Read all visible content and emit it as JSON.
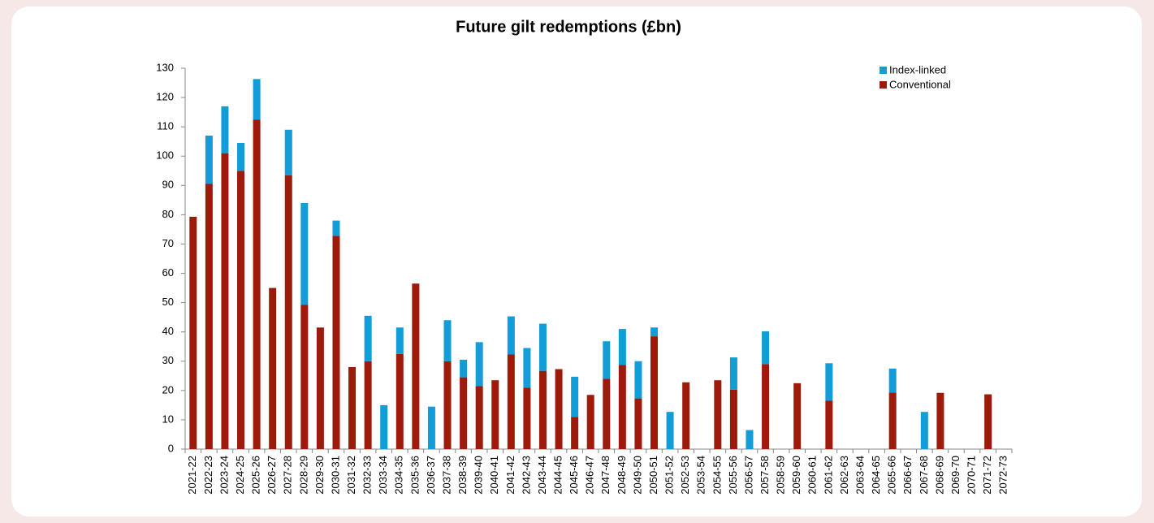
{
  "chart_data": {
    "type": "stacked_bar",
    "title": "Future gilt redemptions (£bn)",
    "categories": [
      "2021-22",
      "2022-23",
      "2023-24",
      "2024-25",
      "2025-26",
      "2026-27",
      "2027-28",
      "2028-29",
      "2029-30",
      "2030-31",
      "2031-32",
      "2032-33",
      "2033-34",
      "2034-35",
      "2035-36",
      "2036-37",
      "2037-38",
      "2038-39",
      "2039-40",
      "2040-41",
      "2041-42",
      "2042-43",
      "2043-44",
      "2044-45",
      "2045-46",
      "2046-47",
      "2047-48",
      "2048-49",
      "2049-50",
      "2050-51",
      "2051-52",
      "2052-53",
      "2053-54",
      "2054-55",
      "2055-56",
      "2056-57",
      "2057-58",
      "2058-59",
      "2059-60",
      "2060-61",
      "2061-62",
      "2062-63",
      "2063-64",
      "2064-65",
      "2065-66",
      "2066-67",
      "2067-68",
      "2068-69",
      "2069-70",
      "2070-71",
      "2071-72",
      "2072-73"
    ],
    "series": [
      {
        "name": "Conventional",
        "color": "#9e1b0c",
        "values": [
          79.3,
          90.5,
          101,
          95,
          112.5,
          55,
          93.5,
          49.3,
          41.5,
          72.8,
          28,
          30,
          0,
          32.5,
          56.5,
          0,
          30,
          24.5,
          21.5,
          23.5,
          32.3,
          21,
          26.7,
          27.3,
          11,
          18.5,
          24,
          28.7,
          17.3,
          38.5,
          0,
          22.8,
          0,
          23.5,
          20.3,
          0,
          29,
          0,
          22.5,
          0,
          16.5,
          0,
          0,
          0,
          19.3,
          0,
          0,
          19.2,
          0,
          0,
          18.7,
          0
        ]
      },
      {
        "name": "Index-linked",
        "color": "#129cd8",
        "values": [
          0,
          16.5,
          16,
          9.5,
          13.8,
          0,
          15.5,
          34.7,
          0,
          5.2,
          0,
          15.5,
          15,
          9,
          0,
          14.5,
          14,
          6,
          15,
          0,
          13,
          13.5,
          16.1,
          0,
          13.7,
          0,
          12.8,
          12.3,
          12.7,
          3,
          12.7,
          0,
          0,
          0,
          11,
          6.5,
          11.2,
          0,
          0,
          0,
          12.8,
          0,
          0,
          0,
          8.2,
          0,
          12.7,
          0,
          0,
          0,
          0,
          0
        ]
      }
    ],
    "ylim": [
      0,
      130
    ],
    "yticks": [
      0,
      10,
      20,
      30,
      40,
      50,
      60,
      70,
      80,
      90,
      100,
      110,
      120,
      130
    ],
    "grid": false,
    "legend": "top-right"
  }
}
